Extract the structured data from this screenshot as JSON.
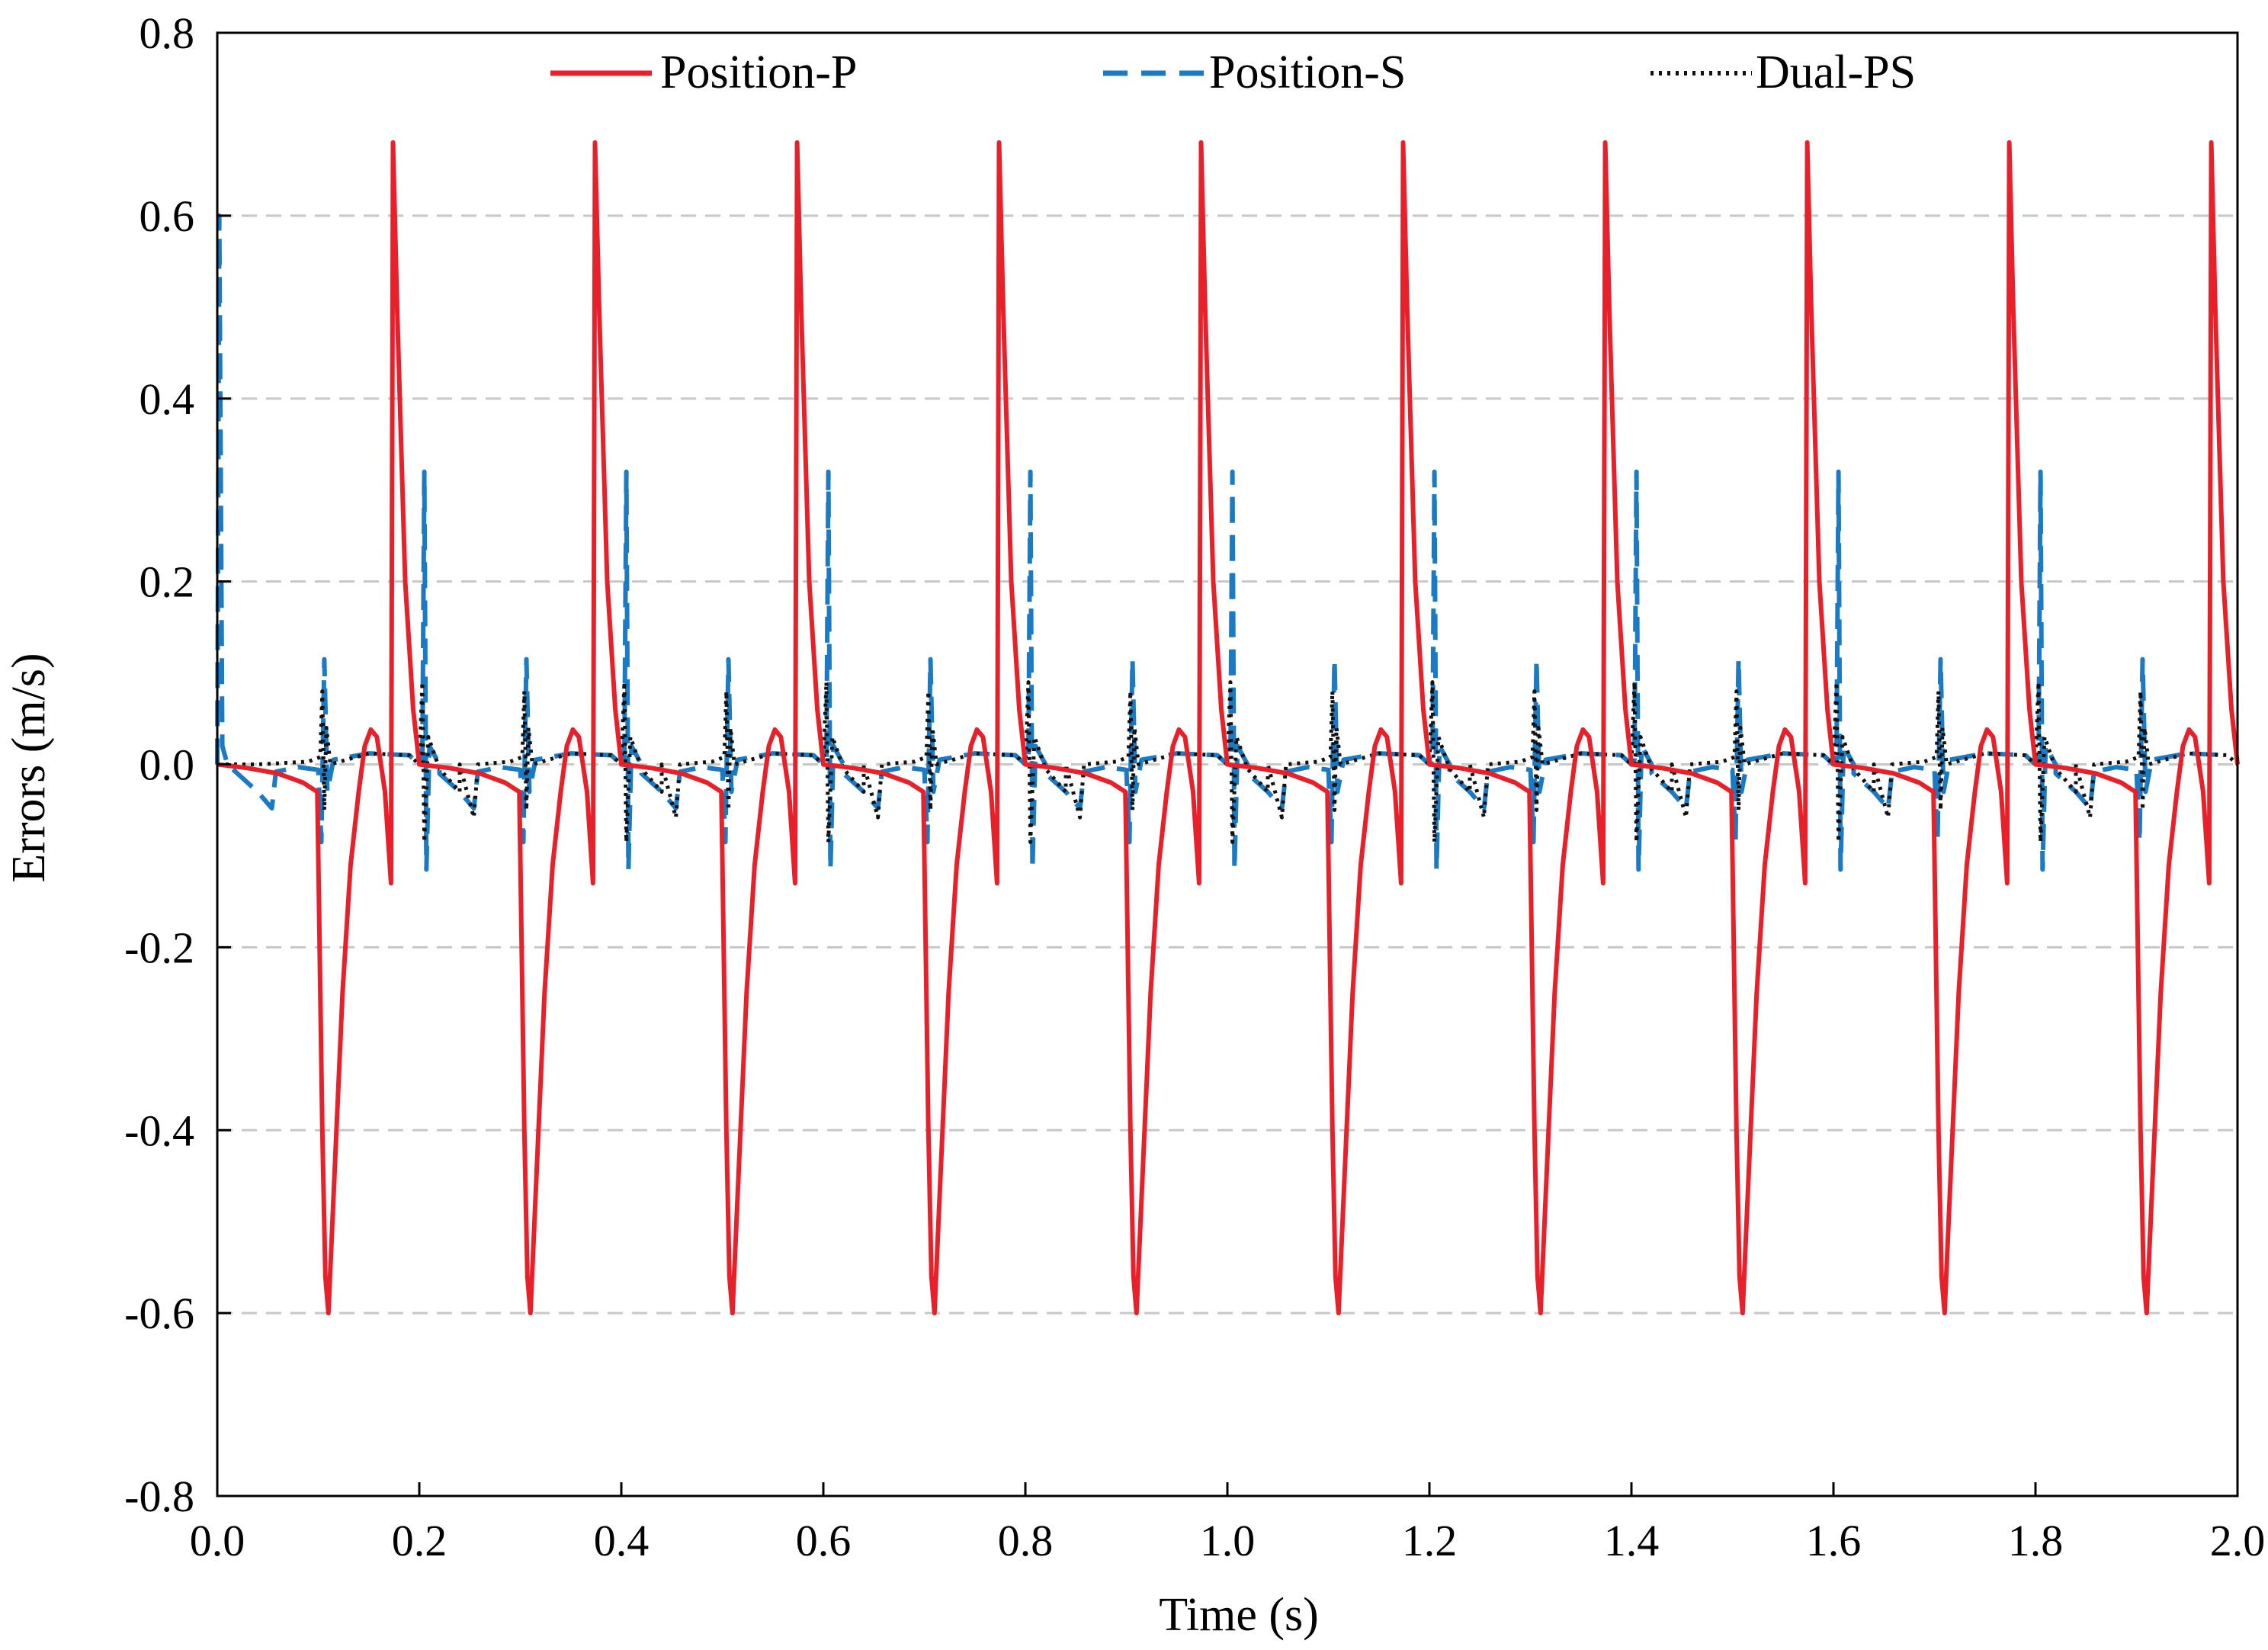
{
  "chart_data": {
    "type": "line",
    "title": "",
    "xlabel": "Time (s)",
    "ylabel": "Errors (m/s)",
    "xlim": [
      0.0,
      2.0
    ],
    "ylim": [
      -0.8,
      0.8
    ],
    "x_ticks": [
      "0.0",
      "0.2",
      "0.4",
      "0.6",
      "0.8",
      "1.0",
      "1.2",
      "1.4",
      "1.6",
      "1.8",
      "2.0"
    ],
    "y_ticks": [
      "0.8",
      "0.6",
      "0.4",
      "0.2",
      "0.0",
      "-0.2",
      "-0.4",
      "-0.6",
      "-0.8"
    ],
    "grid": "horizontal dashed",
    "legend_position": "top",
    "period_s": 0.2,
    "series": [
      {
        "name": "Position-P",
        "color": "#e8202a",
        "style": "solid",
        "cycle_keypoints": [
          [
            0.0,
            0.0
          ],
          [
            0.03,
            -0.004
          ],
          [
            0.06,
            -0.01
          ],
          [
            0.085,
            -0.02
          ],
          [
            0.099,
            -0.03
          ],
          [
            0.1,
            -0.1
          ],
          [
            0.104,
            -0.4
          ],
          [
            0.107,
            -0.56
          ],
          [
            0.11,
            -0.6
          ],
          [
            0.116,
            -0.45
          ],
          [
            0.124,
            -0.25
          ],
          [
            0.132,
            -0.11
          ],
          [
            0.14,
            -0.03
          ],
          [
            0.146,
            0.02
          ],
          [
            0.152,
            0.038
          ],
          [
            0.158,
            0.03
          ],
          [
            0.166,
            -0.03
          ],
          [
            0.172,
            -0.13
          ],
          [
            0.174,
            0.68
          ],
          [
            0.178,
            0.5
          ],
          [
            0.186,
            0.2
          ],
          [
            0.194,
            0.06
          ],
          [
            0.2,
            0.0
          ]
        ]
      },
      {
        "name": "Position-S",
        "color": "#1a7ac4",
        "style": "dashed",
        "cycle_keypoints": [
          [
            0.0,
            0.0
          ],
          [
            0.02,
            -0.01
          ],
          [
            0.04,
            -0.03
          ],
          [
            0.054,
            -0.048
          ],
          [
            0.058,
            -0.008
          ],
          [
            0.08,
            -0.003
          ],
          [
            0.1,
            -0.006
          ],
          [
            0.103,
            -0.085
          ],
          [
            0.106,
            0.115
          ],
          [
            0.109,
            -0.03
          ],
          [
            0.115,
            0.005
          ],
          [
            0.15,
            0.012
          ],
          [
            0.19,
            0.01
          ],
          [
            0.203,
            0.005
          ],
          [
            0.205,
            0.32
          ],
          [
            0.207,
            -0.115
          ],
          [
            0.21,
            0.02
          ],
          [
            0.22,
            0.0
          ]
        ],
        "first_spike": 0.6
      },
      {
        "name": "Dual-PS",
        "color": "#111111",
        "style": "dotted",
        "cycle_keypoints": [
          [
            0.0,
            0.0
          ],
          [
            0.04,
            0.0
          ],
          [
            0.09,
            0.003
          ],
          [
            0.102,
            0.008
          ],
          [
            0.104,
            0.08
          ],
          [
            0.106,
            -0.05
          ],
          [
            0.108,
            0.04
          ],
          [
            0.112,
            0.0
          ],
          [
            0.15,
            0.012
          ],
          [
            0.19,
            0.01
          ],
          [
            0.2,
            0.0
          ],
          [
            0.203,
            0.09
          ],
          [
            0.205,
            -0.085
          ],
          [
            0.209,
            0.03
          ],
          [
            0.22,
            -0.005
          ],
          [
            0.24,
            -0.03
          ],
          [
            0.254,
            -0.058
          ],
          [
            0.258,
            0.0
          ]
        ]
      }
    ]
  }
}
